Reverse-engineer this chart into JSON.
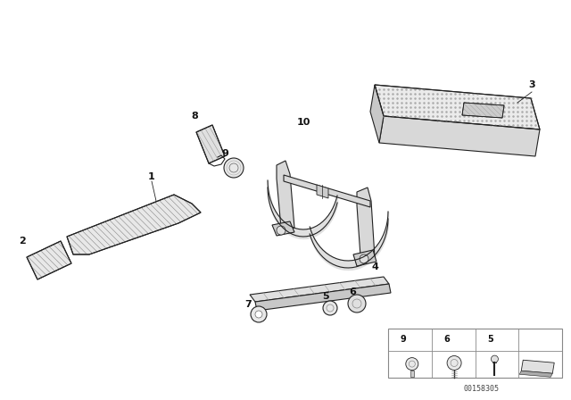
{
  "bg_color": "#ffffff",
  "fig_width": 6.4,
  "fig_height": 4.48,
  "dpi": 100,
  "watermark": "00158305",
  "label_color": "#111111",
  "line_color": "#222222",
  "face_color": "#f0f0f0",
  "dark_color": "#333333"
}
